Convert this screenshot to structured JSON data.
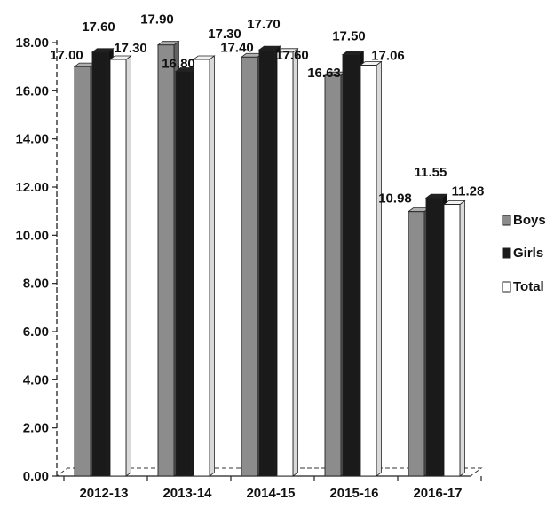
{
  "chart_data": {
    "type": "bar",
    "categories": [
      "2012-13",
      "2013-14",
      "2014-15",
      "2015-16",
      "2016-17"
    ],
    "series": [
      {
        "name": "Boys",
        "values": [
          17.0,
          17.9,
          17.4,
          16.63,
          10.98
        ],
        "color": "#8c8c8c"
      },
      {
        "name": "Girls",
        "values": [
          17.6,
          16.8,
          17.7,
          17.5,
          11.55
        ],
        "color": "#1a1a1a"
      },
      {
        "name": "Total",
        "values": [
          17.3,
          17.3,
          17.6,
          17.06,
          11.28
        ],
        "color": "#ffffff"
      }
    ],
    "data_labels": [
      [
        "17.00",
        "17.60",
        "17.30"
      ],
      [
        "17.90",
        "16.80",
        "17.30"
      ],
      [
        "17.40",
        "17.70",
        "17.60"
      ],
      [
        "16.63",
        "17.50",
        "17.06"
      ],
      [
        "10.98",
        "11.55",
        "11.28"
      ]
    ],
    "y_ticks": [
      "0.00",
      "2.00",
      "4.00",
      "6.00",
      "8.00",
      "10.00",
      "12.00",
      "14.00",
      "16.00",
      "18.00"
    ],
    "ylim": [
      0,
      18
    ],
    "legend_position": "right",
    "grid": false,
    "three_d": true
  }
}
